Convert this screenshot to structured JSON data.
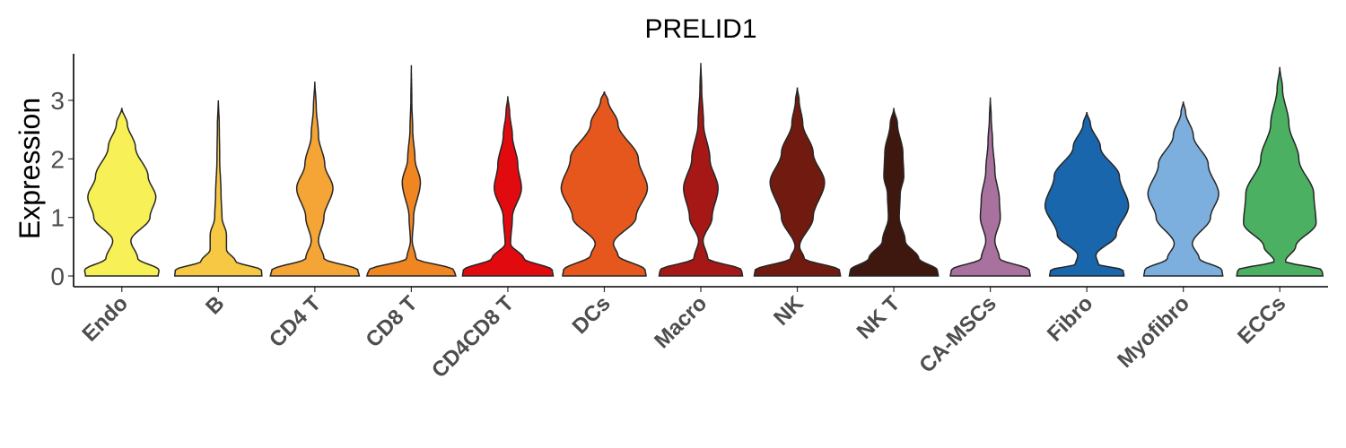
{
  "chart_data": {
    "type": "violin",
    "title": "PRELID1",
    "xlabel": "",
    "ylabel": "Expression",
    "ylim": [
      -0.15,
      3.8
    ],
    "yticks": [
      0,
      1,
      2,
      3
    ],
    "grid": false,
    "legend": "none",
    "categories": [
      "Endo",
      "B",
      "CD4 T",
      "CD8 T",
      "CD4CD8 T",
      "DCs",
      "Macro",
      "NK",
      "NK T",
      "CA-MSCs",
      "Fibro",
      "Myofibro",
      "ECCs"
    ],
    "colors": [
      "#F7F056",
      "#F7C844",
      "#F5A436",
      "#F08622",
      "#E10A0E",
      "#E5571D",
      "#A51815",
      "#701A10",
      "#3E170E",
      "#A9729E",
      "#1966AD",
      "#7CAFDE",
      "#4BB062"
    ],
    "series": [
      {
        "name": "Endo",
        "max": 2.87,
        "density": [
          [
            0,
            0.8
          ],
          [
            0.1,
            0.82
          ],
          [
            0.3,
            0.35
          ],
          [
            0.6,
            0.2
          ],
          [
            1.0,
            0.62
          ],
          [
            1.35,
            0.75
          ],
          [
            1.7,
            0.58
          ],
          [
            2.2,
            0.3
          ],
          [
            2.6,
            0.12
          ],
          [
            2.87,
            0.0
          ]
        ]
      },
      {
        "name": "B",
        "max": 3.0,
        "density": [
          [
            0,
            0.96
          ],
          [
            0.1,
            0.95
          ],
          [
            0.25,
            0.38
          ],
          [
            0.45,
            0.18
          ],
          [
            0.7,
            0.18
          ],
          [
            1.0,
            0.08
          ],
          [
            1.4,
            0.06
          ],
          [
            2.0,
            0.03
          ],
          [
            2.6,
            0.02
          ],
          [
            3.0,
            0.0
          ]
        ]
      },
      {
        "name": "CD4 T",
        "max": 3.32,
        "density": [
          [
            0,
            0.98
          ],
          [
            0.1,
            0.95
          ],
          [
            0.3,
            0.2
          ],
          [
            0.6,
            0.08
          ],
          [
            1.0,
            0.2
          ],
          [
            1.5,
            0.4
          ],
          [
            1.9,
            0.22
          ],
          [
            2.4,
            0.08
          ],
          [
            2.9,
            0.03
          ],
          [
            3.32,
            0.0
          ]
        ]
      },
      {
        "name": "CD8 T",
        "max": 3.6,
        "density": [
          [
            0,
            0.98
          ],
          [
            0.1,
            0.94
          ],
          [
            0.3,
            0.1
          ],
          [
            0.6,
            0.02
          ],
          [
            1.0,
            0.05
          ],
          [
            1.6,
            0.2
          ],
          [
            2.0,
            0.08
          ],
          [
            2.5,
            0.03
          ],
          [
            3.0,
            0.01
          ],
          [
            3.6,
            0.0
          ]
        ]
      },
      {
        "name": "CD4CD8 T",
        "max": 3.07,
        "density": [
          [
            0,
            1.0
          ],
          [
            0.1,
            0.98
          ],
          [
            0.3,
            0.35
          ],
          [
            0.55,
            0.06
          ],
          [
            1.0,
            0.1
          ],
          [
            1.5,
            0.3
          ],
          [
            1.9,
            0.22
          ],
          [
            2.4,
            0.1
          ],
          [
            2.8,
            0.04
          ],
          [
            3.07,
            0.0
          ]
        ]
      },
      {
        "name": "DCs",
        "max": 3.15,
        "density": [
          [
            0,
            0.92
          ],
          [
            0.1,
            0.9
          ],
          [
            0.35,
            0.3
          ],
          [
            0.55,
            0.2
          ],
          [
            1.0,
            0.7
          ],
          [
            1.5,
            0.95
          ],
          [
            2.0,
            0.75
          ],
          [
            2.6,
            0.3
          ],
          [
            3.0,
            0.08
          ],
          [
            3.15,
            0.0
          ]
        ]
      },
      {
        "name": "Macro",
        "max": 3.64,
        "density": [
          [
            0,
            0.92
          ],
          [
            0.1,
            0.9
          ],
          [
            0.3,
            0.15
          ],
          [
            0.6,
            0.05
          ],
          [
            1.0,
            0.25
          ],
          [
            1.5,
            0.38
          ],
          [
            2.0,
            0.2
          ],
          [
            2.6,
            0.06
          ],
          [
            3.2,
            0.02
          ],
          [
            3.64,
            0.0
          ]
        ]
      },
      {
        "name": "NK",
        "max": 3.22,
        "density": [
          [
            0,
            0.95
          ],
          [
            0.1,
            0.93
          ],
          [
            0.3,
            0.15
          ],
          [
            0.5,
            0.05
          ],
          [
            1.0,
            0.35
          ],
          [
            1.6,
            0.6
          ],
          [
            2.1,
            0.35
          ],
          [
            2.6,
            0.12
          ],
          [
            3.0,
            0.04
          ],
          [
            3.22,
            0.0
          ]
        ]
      },
      {
        "name": "NK T",
        "max": 2.87,
        "density": [
          [
            0,
            0.98
          ],
          [
            0.1,
            0.96
          ],
          [
            0.3,
            0.55
          ],
          [
            0.6,
            0.25
          ],
          [
            1.0,
            0.12
          ],
          [
            1.4,
            0.14
          ],
          [
            1.7,
            0.22
          ],
          [
            2.1,
            0.2
          ],
          [
            2.6,
            0.08
          ],
          [
            2.87,
            0.0
          ]
        ]
      },
      {
        "name": "CA-MSCs",
        "max": 3.05,
        "density": [
          [
            0,
            0.88
          ],
          [
            0.1,
            0.86
          ],
          [
            0.3,
            0.2
          ],
          [
            0.6,
            0.1
          ],
          [
            1.0,
            0.22
          ],
          [
            1.3,
            0.2
          ],
          [
            1.8,
            0.1
          ],
          [
            2.3,
            0.05
          ],
          [
            2.7,
            0.02
          ],
          [
            3.05,
            0.0
          ]
        ]
      },
      {
        "name": "Fibro",
        "max": 2.8,
        "density": [
          [
            0,
            0.82
          ],
          [
            0.1,
            0.8
          ],
          [
            0.2,
            0.25
          ],
          [
            0.35,
            0.2
          ],
          [
            0.7,
            0.65
          ],
          [
            1.2,
            0.92
          ],
          [
            1.7,
            0.72
          ],
          [
            2.2,
            0.3
          ],
          [
            2.6,
            0.08
          ],
          [
            2.8,
            0.0
          ]
        ]
      },
      {
        "name": "Myofibro",
        "max": 2.98,
        "density": [
          [
            0,
            0.87
          ],
          [
            0.1,
            0.85
          ],
          [
            0.3,
            0.35
          ],
          [
            0.55,
            0.2
          ],
          [
            1.0,
            0.6
          ],
          [
            1.4,
            0.78
          ],
          [
            1.9,
            0.55
          ],
          [
            2.4,
            0.22
          ],
          [
            2.8,
            0.05
          ],
          [
            2.98,
            0.0
          ]
        ]
      },
      {
        "name": "ECCs",
        "max": 3.57,
        "density": [
          [
            0,
            0.95
          ],
          [
            0.1,
            0.93
          ],
          [
            0.25,
            0.12
          ],
          [
            0.5,
            0.35
          ],
          [
            0.9,
            0.8
          ],
          [
            1.4,
            0.75
          ],
          [
            2.0,
            0.42
          ],
          [
            2.6,
            0.2
          ],
          [
            3.2,
            0.06
          ],
          [
            3.57,
            0.0
          ]
        ]
      }
    ]
  }
}
